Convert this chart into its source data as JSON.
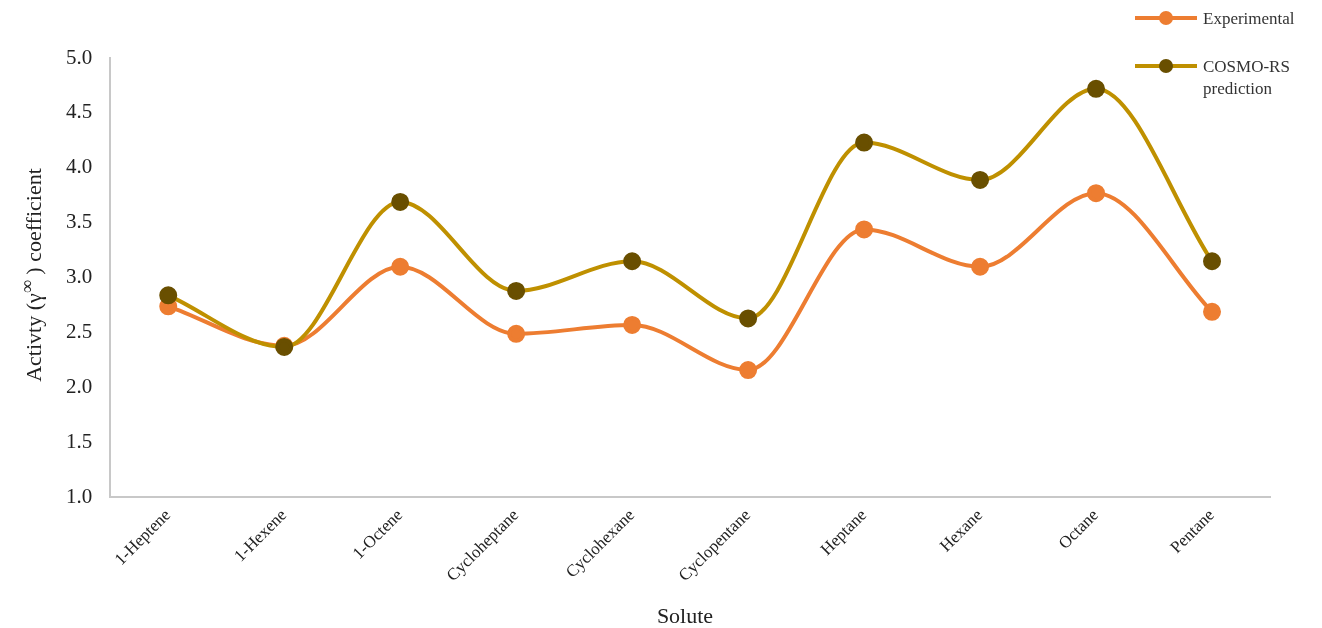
{
  "chart_data": {
    "type": "line",
    "xlabel": "Solute",
    "ylabel": "Activty (γ$^{∞}$ ) coefficient",
    "categories": [
      "1-Heptene",
      "1-Hexene",
      "1-Octene",
      "Cycloheptane",
      "Cyclohexane",
      "Cyclopentane",
      "Heptane",
      "Hexane",
      "Octane",
      "Pentane"
    ],
    "series": [
      {
        "name": "Experimental",
        "color": "#ed7d31",
        "values": [
          2.74,
          2.38,
          3.1,
          2.49,
          2.57,
          2.16,
          3.44,
          3.1,
          3.77,
          2.69
        ]
      },
      {
        "name": "COSMO-RS prediction",
        "color": "#bf9000",
        "values": [
          2.84,
          2.37,
          3.69,
          2.88,
          3.15,
          2.63,
          4.23,
          3.89,
          4.72,
          3.15
        ]
      }
    ],
    "ylim": [
      1,
      5
    ],
    "yticks": [
      {
        "value": 1,
        "label": "1.0"
      },
      {
        "value": 1.5,
        "label": "1.5"
      },
      {
        "value": 2,
        "label": "2.0"
      },
      {
        "value": 2.5,
        "label": "2.5"
      },
      {
        "value": 3,
        "label": "3.0"
      },
      {
        "value": 3.5,
        "label": "3.5"
      },
      {
        "value": 4,
        "label": "4.0"
      },
      {
        "value": 4.5,
        "label": "4.5"
      },
      {
        "value": 5,
        "label": "5.0"
      }
    ],
    "grid": false,
    "legend": "top right",
    "marker": "circle",
    "line_style": "solid"
  }
}
